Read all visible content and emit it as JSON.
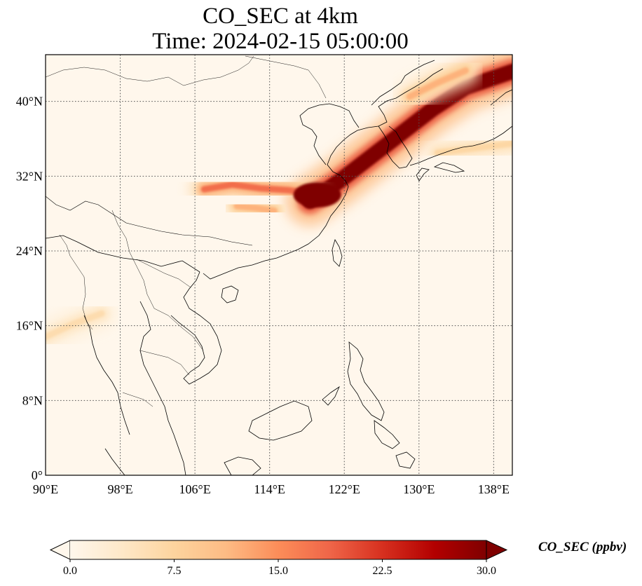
{
  "title": {
    "line1": "CO_SEC at 4km",
    "line2": "Time: 2024-02-15 05:00:00"
  },
  "map": {
    "projection": "PlateCarree",
    "lon_range": [
      90,
      140
    ],
    "lat_range": [
      0,
      45
    ],
    "gridlines": true,
    "gridline_style": "dotted",
    "lon_ticks": [
      {
        "value": 90,
        "label": "90°E"
      },
      {
        "value": 98,
        "label": "98°E"
      },
      {
        "value": 106,
        "label": "106°E"
      },
      {
        "value": 114,
        "label": "114°E"
      },
      {
        "value": 122,
        "label": "122°E"
      },
      {
        "value": 130,
        "label": "130°E"
      },
      {
        "value": 138,
        "label": "138°E"
      }
    ],
    "lat_ticks": [
      {
        "value": 0,
        "label": "0°"
      },
      {
        "value": 8,
        "label": "8°N"
      },
      {
        "value": 16,
        "label": "16°N"
      },
      {
        "value": 24,
        "label": "24°N"
      },
      {
        "value": 32,
        "label": "32°N"
      },
      {
        "value": 40,
        "label": "40°N"
      }
    ],
    "field_features": [
      {
        "name": "plume-core",
        "peak_ppbv": 30,
        "path_lonlat": [
          [
            118.3,
            29.3
          ],
          [
            121.5,
            31.5
          ],
          [
            124.5,
            33.8
          ],
          [
            128,
            36.5
          ],
          [
            131.5,
            39.2
          ],
          [
            135,
            41.5
          ],
          [
            140,
            43.2
          ]
        ]
      },
      {
        "name": "plume-west-band",
        "peak_ppbv": 18,
        "path_lonlat": [
          [
            107,
            30.6
          ],
          [
            110,
            31.1
          ],
          [
            113,
            30.7
          ],
          [
            116,
            30.5
          ],
          [
            118.3,
            30.2
          ]
        ]
      },
      {
        "name": "plume-south-lobe",
        "peak_ppbv": 12,
        "path_lonlat": [
          [
            110.5,
            28.8
          ],
          [
            112.5,
            28.6
          ],
          [
            114.5,
            28.3
          ]
        ]
      },
      {
        "name": "plume-north-arm",
        "peak_ppbv": 12,
        "path_lonlat": [
          [
            129,
            40.5
          ],
          [
            132,
            42
          ],
          [
            135,
            43.3
          ]
        ]
      },
      {
        "name": "haze-southwest",
        "peak_ppbv": 6,
        "path_lonlat": [
          [
            90,
            14.8
          ],
          [
            93,
            16.2
          ],
          [
            96,
            17.3
          ]
        ]
      },
      {
        "name": "haze-japan-east",
        "peak_ppbv": 7,
        "path_lonlat": [
          [
            132,
            34.5
          ],
          [
            136,
            35
          ],
          [
            140,
            35.5
          ]
        ]
      }
    ]
  },
  "colorbar": {
    "colormap": "OrRd",
    "vmin": 0.0,
    "vmax": 30.0,
    "extend": "both",
    "ticks": [
      "0.0",
      "7.5",
      "15.0",
      "22.5",
      "30.0"
    ],
    "label": "CO_SEC (ppbv)",
    "colors": [
      "#fff7ec",
      "#fee8c8",
      "#fdd49e",
      "#fdbb84",
      "#fc8d59",
      "#ef6548",
      "#d7301f",
      "#b30000",
      "#7f0000"
    ]
  }
}
